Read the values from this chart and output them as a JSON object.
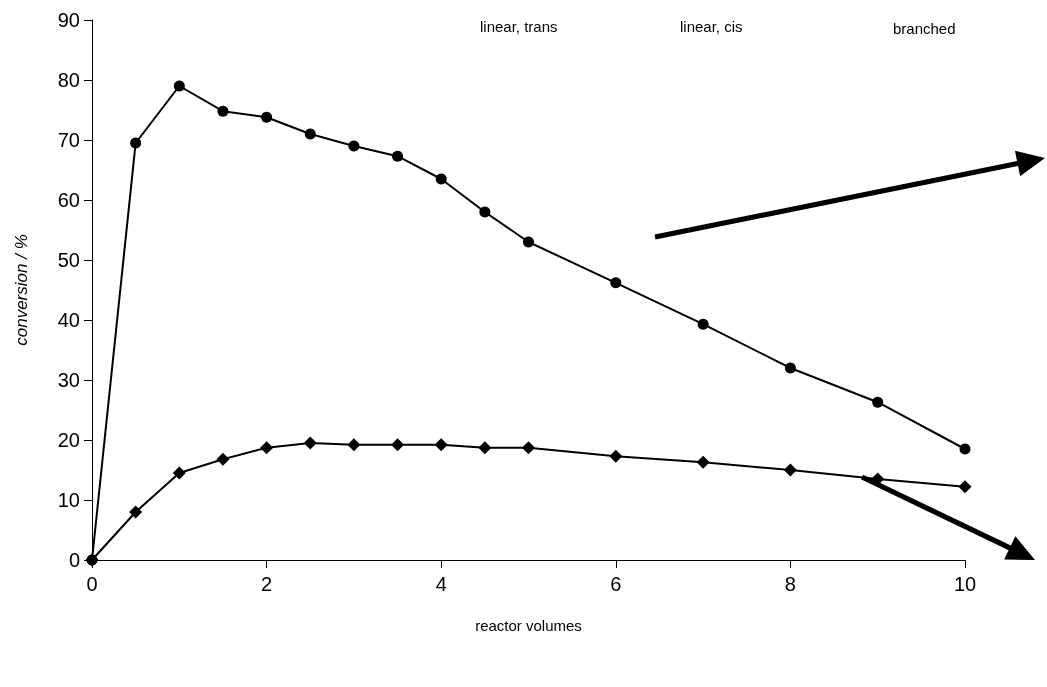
{
  "chart_data": {
    "type": "line",
    "xlabel": "reactor volumes",
    "ylabel": "conversion / %",
    "xlim": [
      0,
      10
    ],
    "xticks": [
      0,
      2,
      4,
      6,
      8,
      10
    ],
    "ylim": [
      0,
      90
    ],
    "yticks": [
      0,
      10,
      20,
      30,
      40,
      50,
      60,
      70,
      80,
      90
    ],
    "grid": false,
    "annotations": [
      "linear, trans",
      "linear, cis",
      "branched"
    ],
    "series": [
      {
        "color": "#000000",
        "marker": "circle",
        "x": [
          0,
          0.5,
          1,
          1.5,
          2,
          2.5,
          3,
          3.5,
          4,
          4.5,
          5,
          6,
          7,
          8,
          9,
          10
        ],
        "values": [
          0,
          69.5,
          79,
          74.8,
          73.8,
          71,
          69,
          67.3,
          63.5,
          58,
          53,
          46.2,
          39.3,
          32,
          26.3,
          18.5
        ]
      },
      {
        "color": "#000000",
        "marker": "diamond",
        "x": [
          0,
          0.5,
          1,
          1.5,
          2,
          2.5,
          3,
          3.5,
          4,
          4.5,
          5,
          6,
          7,
          8,
          9,
          10
        ],
        "values": [
          0,
          8,
          14.5,
          16.8,
          18.7,
          19.5,
          19.2,
          19.2,
          19.2,
          18.7,
          18.7,
          17.3,
          16.3,
          15,
          13.5,
          12.2
        ]
      }
    ]
  }
}
